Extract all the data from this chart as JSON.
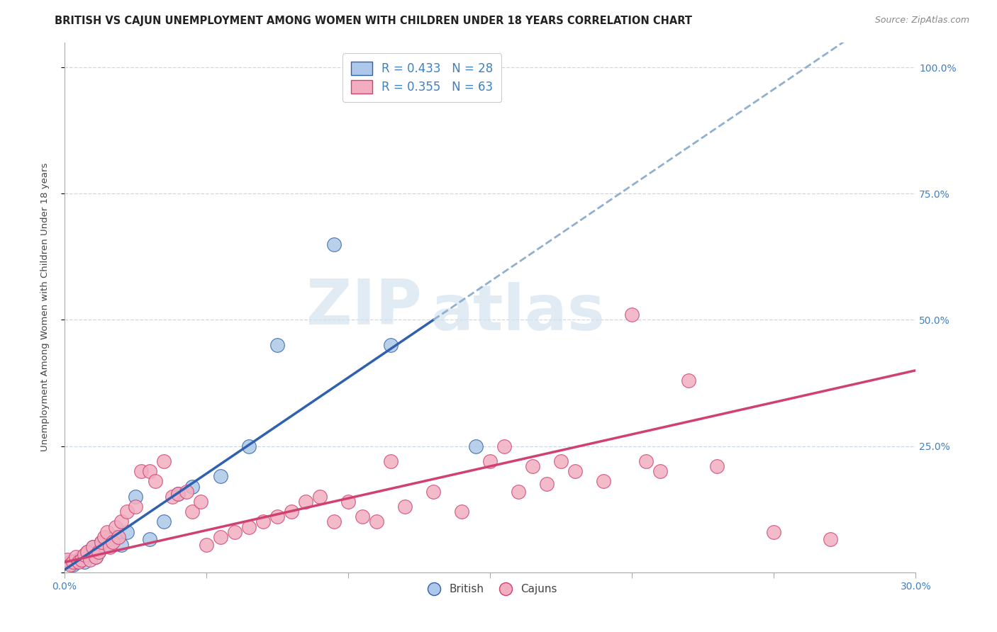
{
  "title": "BRITISH VS CAJUN UNEMPLOYMENT AMONG WOMEN WITH CHILDREN UNDER 18 YEARS CORRELATION CHART",
  "source": "Source: ZipAtlas.com",
  "ylabel": "Unemployment Among Women with Children Under 18 years",
  "yticks": [
    0.0,
    0.25,
    0.5,
    0.75,
    1.0
  ],
  "ytick_labels": [
    "",
    "25.0%",
    "50.0%",
    "75.0%",
    "100.0%"
  ],
  "british_r": 0.433,
  "british_n": 28,
  "cajun_r": 0.355,
  "cajun_n": 63,
  "british_color": "#adc8e8",
  "cajun_color": "#f2aec0",
  "british_line_color": "#3060b0",
  "cajun_line_color": "#d04070",
  "dashed_line_color": "#90b0d0",
  "watermark_zip": "ZIP",
  "watermark_atlas": "atlas",
  "british_scatter_x": [
    0.002,
    0.003,
    0.004,
    0.005,
    0.006,
    0.007,
    0.008,
    0.009,
    0.01,
    0.011,
    0.012,
    0.013,
    0.015,
    0.016,
    0.018,
    0.02,
    0.022,
    0.025,
    0.03,
    0.035,
    0.04,
    0.045,
    0.055,
    0.065,
    0.075,
    0.095,
    0.115,
    0.145
  ],
  "british_scatter_y": [
    0.02,
    0.015,
    0.02,
    0.025,
    0.03,
    0.02,
    0.04,
    0.035,
    0.05,
    0.03,
    0.04,
    0.06,
    0.055,
    0.065,
    0.07,
    0.055,
    0.08,
    0.15,
    0.065,
    0.1,
    0.155,
    0.17,
    0.19,
    0.25,
    0.45,
    0.65,
    0.45,
    0.25
  ],
  "cajun_scatter_x": [
    0.001,
    0.002,
    0.003,
    0.004,
    0.005,
    0.006,
    0.007,
    0.008,
    0.009,
    0.01,
    0.011,
    0.012,
    0.013,
    0.014,
    0.015,
    0.016,
    0.017,
    0.018,
    0.019,
    0.02,
    0.022,
    0.025,
    0.027,
    0.03,
    0.032,
    0.035,
    0.038,
    0.04,
    0.043,
    0.045,
    0.048,
    0.05,
    0.055,
    0.06,
    0.065,
    0.07,
    0.075,
    0.08,
    0.085,
    0.09,
    0.095,
    0.1,
    0.105,
    0.11,
    0.115,
    0.12,
    0.13,
    0.14,
    0.15,
    0.155,
    0.16,
    0.165,
    0.17,
    0.175,
    0.18,
    0.19,
    0.2,
    0.205,
    0.21,
    0.22,
    0.23,
    0.25,
    0.27
  ],
  "cajun_scatter_y": [
    0.025,
    0.015,
    0.02,
    0.03,
    0.02,
    0.025,
    0.035,
    0.04,
    0.025,
    0.05,
    0.03,
    0.04,
    0.06,
    0.07,
    0.08,
    0.05,
    0.06,
    0.09,
    0.07,
    0.1,
    0.12,
    0.13,
    0.2,
    0.2,
    0.18,
    0.22,
    0.15,
    0.155,
    0.16,
    0.12,
    0.14,
    0.055,
    0.07,
    0.08,
    0.09,
    0.1,
    0.11,
    0.12,
    0.14,
    0.15,
    0.1,
    0.14,
    0.11,
    0.1,
    0.22,
    0.13,
    0.16,
    0.12,
    0.22,
    0.25,
    0.16,
    0.21,
    0.175,
    0.22,
    0.2,
    0.18,
    0.51,
    0.22,
    0.2,
    0.38,
    0.21,
    0.08,
    0.065
  ],
  "british_line_x0": 0.0,
  "british_line_y0": 0.005,
  "british_line_x1": 0.13,
  "british_line_y1": 0.5,
  "cajun_line_x0": 0.0,
  "cajun_line_y0": 0.02,
  "cajun_line_x1": 0.3,
  "cajun_line_y1": 0.4,
  "dashed_line_x0": 0.13,
  "dashed_line_x1": 0.3,
  "xlim": [
    0.0,
    0.3
  ],
  "ylim": [
    0.0,
    1.05
  ],
  "background_color": "#ffffff",
  "title_fontsize": 10.5,
  "axis_label_fontsize": 9.5,
  "tick_fontsize": 10,
  "legend_fontsize": 12,
  "grid_color": "#c8d8e8"
}
